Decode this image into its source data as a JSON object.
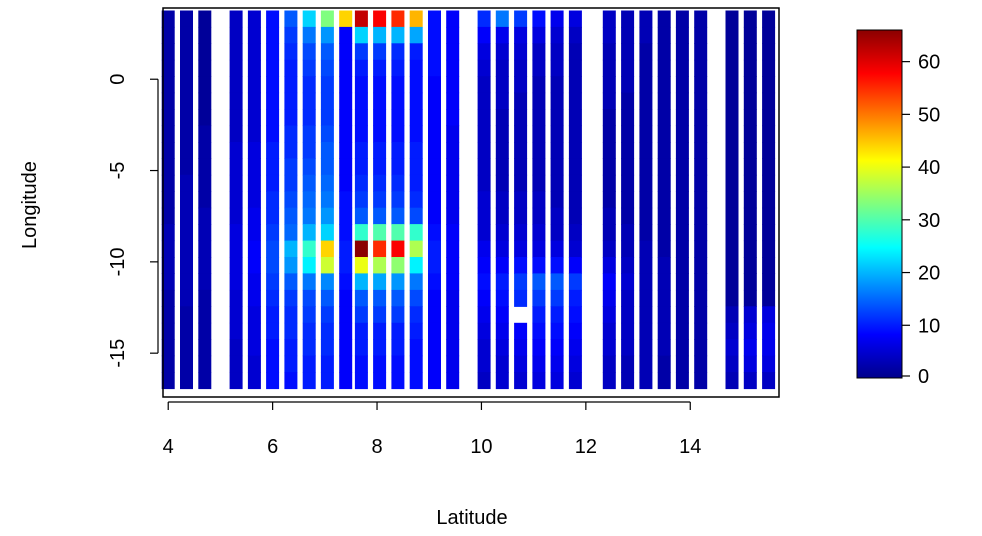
{
  "chart_data": {
    "type": "heatmap",
    "title": "",
    "xlabel": "Latitude",
    "ylabel": "Longitude",
    "xlim": [
      3.9,
      15.7
    ],
    "ylim": [
      -17.4,
      3.9
    ],
    "x_ticks": [
      4,
      6,
      8,
      10,
      12,
      14
    ],
    "y_ticks": [
      0,
      -5,
      -10,
      -15
    ],
    "x_tick_labels": [
      "4",
      "6",
      "8",
      "10",
      "12",
      "14"
    ],
    "y_tick_labels": [
      "0",
      "-5",
      "-10",
      "-15"
    ],
    "grid": false,
    "colorbar": {
      "position": "right",
      "min": 0,
      "max": 66,
      "ticks": [
        0,
        10,
        20,
        30,
        40,
        50,
        60
      ],
      "tick_labels": [
        "0",
        "10",
        "20",
        "30",
        "40",
        "50",
        "60"
      ],
      "colors": [
        "#00008B",
        "#0000FF",
        "#007FFF",
        "#00FFFF",
        "#7FFF7F",
        "#FFFF00",
        "#FF7F00",
        "#FF0000",
        "#8B0000"
      ]
    },
    "x": [
      4.0,
      4.35,
      4.7,
      5.3,
      5.65,
      6.0,
      6.35,
      6.7,
      7.05,
      7.4,
      7.7,
      8.05,
      8.4,
      8.75,
      9.1,
      9.45,
      10.05,
      10.4,
      10.75,
      11.1,
      11.45,
      11.8,
      12.45,
      12.8,
      13.15,
      13.5,
      13.85,
      14.2,
      14.8,
      15.15,
      15.5
    ],
    "y": [
      3.3,
      2.4,
      1.5,
      0.6,
      -0.3,
      -1.2,
      -2.1,
      -3.0,
      -3.9,
      -4.8,
      -5.7,
      -6.6,
      -7.5,
      -8.4,
      -9.3,
      -10.2,
      -11.1,
      -12.0,
      -12.9,
      -13.8,
      -14.7,
      -15.6,
      -16.5
    ],
    "z": [
      [
        2,
        2,
        1,
        4,
        5,
        9,
        14,
        22,
        33,
        44,
        62,
        58,
        55,
        46,
        9,
        8,
        11,
        16,
        12,
        9,
        7,
        6,
        4,
        3,
        3,
        2,
        2,
        2,
        1,
        1,
        1
      ],
      [
        2,
        2,
        1,
        4,
        5,
        9,
        12,
        16,
        18,
        8,
        22,
        20,
        20,
        19,
        9,
        8,
        8,
        7,
        6,
        6,
        5,
        4,
        4,
        3,
        3,
        2,
        2,
        2,
        1,
        1,
        1
      ],
      [
        2,
        2,
        1,
        4,
        5,
        9,
        11,
        13,
        14,
        8,
        12,
        12,
        11,
        10,
        9,
        8,
        6,
        5,
        5,
        4,
        4,
        3,
        3,
        3,
        2,
        2,
        2,
        2,
        1,
        1,
        1
      ],
      [
        2,
        2,
        1,
        4,
        5,
        9,
        10,
        12,
        13,
        8,
        10,
        10,
        10,
        9,
        9,
        8,
        5,
        4,
        4,
        4,
        4,
        3,
        3,
        3,
        2,
        2,
        2,
        2,
        1,
        1,
        1
      ],
      [
        2,
        2,
        1,
        4,
        5,
        9,
        10,
        11,
        12,
        8,
        9,
        9,
        9,
        9,
        8,
        8,
        4,
        4,
        4,
        3,
        3,
        3,
        3,
        3,
        2,
        2,
        2,
        2,
        1,
        1,
        1
      ],
      [
        2,
        2,
        1,
        4,
        5,
        9,
        10,
        11,
        12,
        8,
        9,
        9,
        9,
        9,
        8,
        8,
        4,
        4,
        3,
        3,
        3,
        3,
        3,
        2,
        2,
        2,
        2,
        2,
        1,
        1,
        1
      ],
      [
        2,
        2,
        1,
        4,
        5,
        9,
        10,
        11,
        12,
        8,
        9,
        9,
        9,
        9,
        8,
        8,
        4,
        3,
        3,
        3,
        3,
        3,
        2,
        2,
        2,
        2,
        2,
        2,
        1,
        1,
        1
      ],
      [
        2,
        2,
        2,
        4,
        5,
        9,
        11,
        12,
        13,
        8,
        9,
        9,
        9,
        9,
        8,
        7,
        4,
        3,
        3,
        3,
        3,
        3,
        2,
        2,
        2,
        2,
        2,
        2,
        1,
        1,
        1
      ],
      [
        2,
        2,
        2,
        5,
        6,
        10,
        11,
        12,
        14,
        8,
        10,
        10,
        10,
        10,
        8,
        7,
        4,
        3,
        3,
        3,
        3,
        3,
        2,
        2,
        2,
        2,
        2,
        2,
        1,
        1,
        1
      ],
      [
        2,
        2,
        2,
        5,
        6,
        10,
        12,
        13,
        14,
        8,
        10,
        10,
        10,
        10,
        8,
        7,
        4,
        3,
        3,
        3,
        3,
        3,
        2,
        2,
        2,
        2,
        2,
        2,
        1,
        1,
        1
      ],
      [
        2,
        3,
        2,
        5,
        6,
        10,
        12,
        14,
        15,
        8,
        11,
        11,
        11,
        10,
        8,
        7,
        4,
        3,
        3,
        3,
        3,
        3,
        2,
        2,
        2,
        2,
        2,
        2,
        1,
        1,
        1
      ],
      [
        2,
        3,
        2,
        5,
        6,
        11,
        13,
        15,
        16,
        9,
        12,
        12,
        12,
        11,
        8,
        7,
        5,
        4,
        4,
        4,
        3,
        3,
        2,
        2,
        2,
        2,
        2,
        2,
        1,
        1,
        1
      ],
      [
        2,
        3,
        3,
        5,
        7,
        11,
        14,
        16,
        18,
        9,
        14,
        14,
        14,
        13,
        8,
        7,
        5,
        4,
        4,
        4,
        4,
        3,
        3,
        2,
        2,
        2,
        2,
        2,
        1,
        1,
        1
      ],
      [
        3,
        3,
        3,
        6,
        7,
        12,
        15,
        20,
        22,
        9,
        28,
        30,
        30,
        28,
        9,
        8,
        5,
        5,
        5,
        5,
        4,
        4,
        3,
        3,
        2,
        2,
        2,
        2,
        1,
        1,
        1
      ],
      [
        3,
        3,
        3,
        6,
        8,
        13,
        20,
        28,
        44,
        10,
        66,
        55,
        58,
        36,
        10,
        8,
        7,
        6,
        6,
        6,
        6,
        5,
        4,
        3,
        3,
        2,
        2,
        2,
        1,
        1,
        1
      ],
      [
        3,
        3,
        3,
        6,
        8,
        13,
        18,
        24,
        38,
        10,
        40,
        36,
        34,
        24,
        10,
        8,
        8,
        8,
        9,
        9,
        9,
        8,
        6,
        4,
        3,
        3,
        2,
        2,
        1,
        1,
        1
      ],
      [
        3,
        3,
        3,
        6,
        7,
        12,
        14,
        16,
        17,
        9,
        20,
        19,
        18,
        16,
        9,
        8,
        9,
        10,
        12,
        14,
        14,
        12,
        8,
        5,
        3,
        3,
        2,
        2,
        1,
        1,
        1
      ],
      [
        2,
        3,
        2,
        5,
        7,
        11,
        12,
        13,
        14,
        8,
        14,
        14,
        14,
        13,
        8,
        7,
        8,
        9,
        11,
        12,
        12,
        10,
        7,
        4,
        3,
        3,
        2,
        2,
        1,
        1,
        1
      ],
      [
        2,
        2,
        2,
        5,
        6,
        10,
        11,
        12,
        12,
        8,
        12,
        12,
        12,
        11,
        8,
        7,
        7,
        8,
        null,
        10,
        10,
        9,
        6,
        4,
        3,
        3,
        2,
        2,
        3,
        5,
        6
      ],
      [
        2,
        2,
        2,
        5,
        6,
        10,
        11,
        11,
        11,
        8,
        10,
        10,
        10,
        10,
        8,
        7,
        6,
        7,
        8,
        9,
        9,
        8,
        5,
        4,
        3,
        3,
        2,
        2,
        4,
        6,
        7
      ],
      [
        2,
        2,
        2,
        4,
        6,
        9,
        10,
        11,
        11,
        8,
        10,
        10,
        10,
        9,
        8,
        7,
        5,
        6,
        7,
        8,
        8,
        7,
        5,
        4,
        3,
        3,
        2,
        2,
        5,
        7,
        7
      ],
      [
        2,
        2,
        2,
        4,
        5,
        9,
        10,
        10,
        10,
        8,
        9,
        9,
        9,
        9,
        8,
        7,
        5,
        5,
        6,
        7,
        7,
        6,
        4,
        3,
        3,
        2,
        2,
        2,
        4,
        6,
        6
      ],
      [
        2,
        2,
        2,
        4,
        5,
        9,
        9,
        10,
        10,
        8,
        9,
        9,
        9,
        9,
        8,
        7,
        4,
        5,
        5,
        6,
        6,
        5,
        4,
        3,
        3,
        2,
        2,
        2,
        3,
        4,
        4
      ]
    ]
  }
}
